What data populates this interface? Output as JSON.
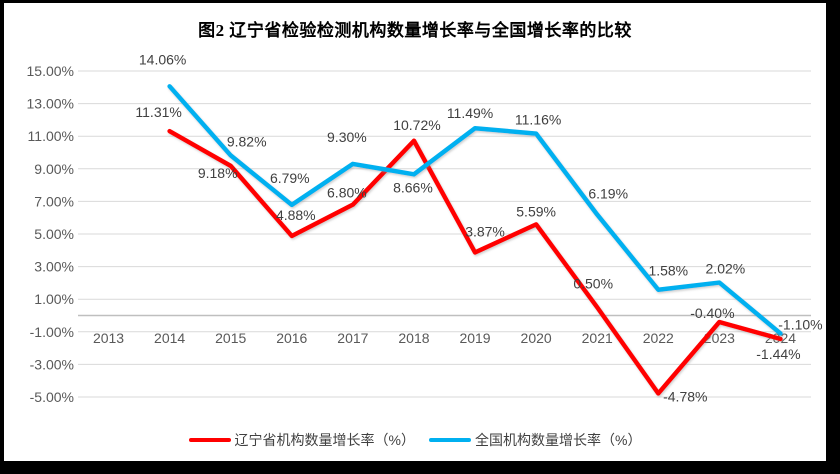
{
  "colors": {
    "liaoning_red": "#FF0000",
    "national_blue": "#00B0F0",
    "gridline": "#D9D9D9",
    "zero_axis": "#BFBFBF",
    "tick_text": "#595959",
    "data_label_text": "#404040",
    "title_text": "#000000",
    "frame": "#000000",
    "background": "#FFFFFF"
  },
  "chart_data": {
    "type": "line",
    "title": "图2 辽宁省检验检测机构数量增长率与全国增长率的比较",
    "xlabel": "",
    "ylabel": "",
    "categories": [
      "2013",
      "2014",
      "2015",
      "2016",
      "2017",
      "2018",
      "2019",
      "2020",
      "2021",
      "2022",
      "2023",
      "2024"
    ],
    "series": [
      {
        "name": "辽宁省机构数量增长率（%）",
        "color": "#FF0000",
        "values": [
          null,
          11.31,
          9.18,
          4.88,
          6.8,
          10.72,
          3.87,
          5.59,
          0.5,
          -4.78,
          -0.4,
          -1.44
        ],
        "labels": [
          null,
          "11.31%",
          "9.18%",
          "4.88%",
          "6.80%",
          "10.72%",
          "3.87%",
          "5.59%",
          "0.50%",
          "-4.78%",
          "-0.40%",
          "-1.44%"
        ],
        "label_offsets": [
          null,
          [
            -11,
            -19
          ],
          [
            -13,
            7
          ],
          [
            4,
            -21
          ],
          [
            -6,
            -12
          ],
          [
            3,
            -16
          ],
          [
            10,
            -21
          ],
          [
            0,
            -13
          ],
          [
            -4,
            -24
          ],
          [
            27,
            3
          ],
          [
            -7,
            -9
          ],
          [
            -2,
            15
          ]
        ]
      },
      {
        "name": "全国机构数量增长率（%）",
        "color": "#00B0F0",
        "values": [
          null,
          14.06,
          9.82,
          6.79,
          9.3,
          8.66,
          11.49,
          11.16,
          6.19,
          1.58,
          2.02,
          -1.1
        ],
        "labels": [
          null,
          "14.06%",
          "9.82%",
          "6.79%",
          "9.30%",
          "8.66%",
          "11.49%",
          "11.16%",
          "6.19%",
          "1.58%",
          "2.02%",
          "-1.10%"
        ],
        "label_offsets": [
          null,
          [
            -7,
            -27
          ],
          [
            16,
            -14
          ],
          [
            -2,
            -27
          ],
          [
            -6,
            -27
          ],
          [
            -1,
            13
          ],
          [
            -5,
            -15
          ],
          [
            2,
            -14
          ],
          [
            11,
            -21
          ],
          [
            10,
            -19
          ],
          [
            6,
            -14
          ],
          [
            20,
            -9
          ]
        ]
      }
    ],
    "y_axis": {
      "min": -5,
      "max": 15,
      "step": 2,
      "tick_values": [
        15,
        13,
        11,
        9,
        7,
        5,
        3,
        1,
        -1,
        -3,
        -5
      ],
      "tick_labels": [
        "15.00%",
        "13.00%",
        "11.00%",
        "9.00%",
        "7.00%",
        "5.00%",
        "3.00%",
        "1.00%",
        "-1.00%",
        "-3.00%",
        "-5.00%"
      ]
    },
    "grid": true,
    "legend_position": "bottom"
  }
}
